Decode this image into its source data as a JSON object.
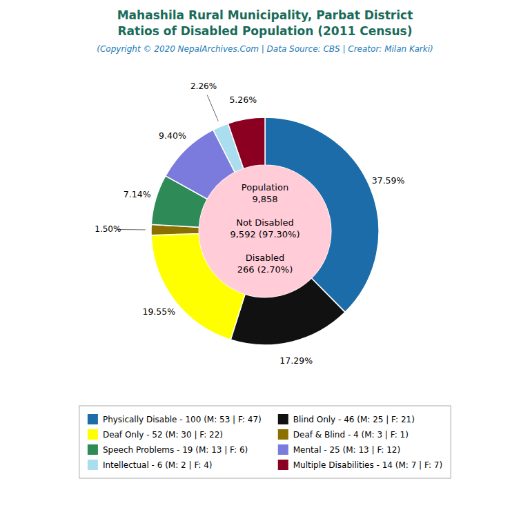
{
  "chart_data": {
    "type": "pie",
    "title": "Mahashila Rural Municipality, Parbat District\nRatios of Disabled Population (2011 Census)",
    "subtitle": "(Copyright © 2020 NepalArchives.Com | Data Source: CBS | Creator: Milan Karki)",
    "annotations": [
      "Population\n9,858",
      "Not Disabled\n9,592 (97.30%)",
      "Disabled\n266 (2.70%)"
    ],
    "categories": [
      "Physically Disable - 100 (M: 53 | F: 47)",
      "Blind Only - 46 (M: 25 | F: 21)",
      "Deaf Only - 52 (M: 30 | F: 22)",
      "Deaf & Blind - 4 (M: 3 | F: 1)",
      "Speech Problems - 19 (M: 13 | F: 6)",
      "Mental - 25 (M: 13 | F: 12)",
      "Intellectual - 6 (M: 2 | F: 4)",
      "Multiple Disabilities - 14 (M: 7 | F: 7)"
    ],
    "values": [
      37.59,
      17.29,
      19.55,
      1.5,
      7.14,
      9.4,
      2.26,
      5.26
    ],
    "value_labels": [
      "37.59%",
      "17.29%",
      "19.55%",
      "1.50%",
      "7.14%",
      "9.40%",
      "2.26%",
      "5.26%"
    ],
    "colors": [
      "#1b6ca8",
      "#111111",
      "#ffff00",
      "#8b7000",
      "#2e8b57",
      "#7b7bdd",
      "#aaddee",
      "#8b0020"
    ],
    "data_labels": true,
    "legend": "bottom"
  }
}
